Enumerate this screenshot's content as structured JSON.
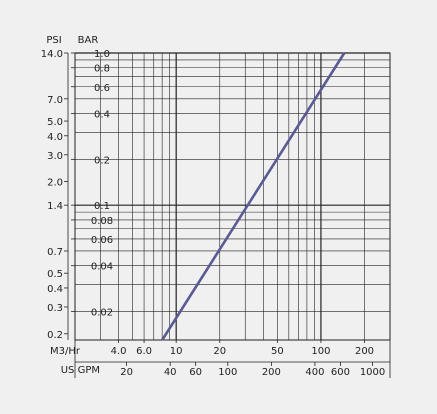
{
  "chart_data": {
    "type": "line",
    "title": "",
    "left_axis": {
      "units": [
        "PSI",
        "BAR"
      ],
      "psi_ticks": [
        "14.0",
        "7.0",
        "5.0",
        "4.0",
        "3.0",
        "2.0",
        "1.4",
        "0.7",
        "0.5",
        "0.4",
        "0.3",
        "0.2"
      ],
      "bar_ticks": [
        "1.0",
        "0.8",
        "0.6",
        "0.4",
        "0.2",
        "0.1",
        "0.08",
        "0.06",
        "0.04",
        "0.02"
      ],
      "scale": "log",
      "range_bar": [
        0.013,
        1.0
      ]
    },
    "bottom_axis": {
      "m3hr_label": "M3/Hr",
      "m3hr_ticks": [
        "4.0",
        "6.0",
        "10",
        "20",
        "50",
        "100",
        "200"
      ],
      "gpm_label": "US GPM",
      "gpm_ticks": [
        "20",
        "40",
        "60",
        "100",
        "200",
        "400",
        "600",
        "1000"
      ],
      "scale": "log",
      "range_m3hr": [
        2.0,
        300
      ]
    },
    "grid": true,
    "series": [
      {
        "x_m3hr": [
          8.0,
          145
        ],
        "y_bar": [
          0.013,
          1.0
        ]
      }
    ],
    "colors": {
      "background": "#f0f0f0",
      "grid": "#222222",
      "line": "#5a5a94"
    }
  }
}
